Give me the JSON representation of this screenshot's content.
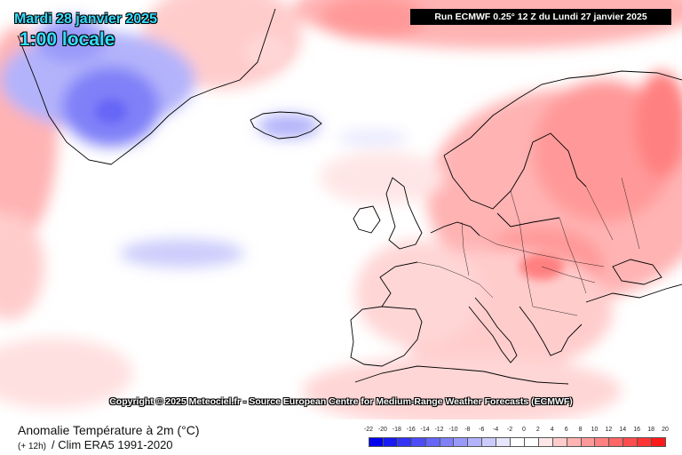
{
  "header": {
    "date": "Mardi 28 janvier 2025",
    "local_time": "1:00 locale",
    "run": "Run ECMWF 0.25° 12 Z du Lundi 27 janvier 2025"
  },
  "map": {
    "copyright": "Copyright © 2025 Meteociel.fr - Source European Centre for Medium-Range Weather Forecasts (ECMWF)",
    "region": "North Atlantic and Europe",
    "field": "2m temperature anomaly",
    "background_color": "#ffffff",
    "coastline_color": "#000000"
  },
  "footer": {
    "title": "Anomalie Température à 2m (°C)",
    "lead": "(+ 12h)",
    "climatology": "/ Clim ERA5 1991-2020"
  },
  "legend": {
    "labels": [
      "-22",
      "-20",
      "-18",
      "-16",
      "-14",
      "-12",
      "-10",
      "-8",
      "-6",
      "-4",
      "-2",
      "0",
      "2",
      "4",
      "6",
      "8",
      "10",
      "12",
      "14",
      "16",
      "18",
      "20"
    ],
    "colors": [
      "#0000ee",
      "#1a1af2",
      "#3333f4",
      "#4d4df6",
      "#6666f7",
      "#8080f8",
      "#9999fa",
      "#b3b3fb",
      "#ccccfc",
      "#e6e6fe",
      "#ffffff",
      "#ffffff",
      "#ffe6e6",
      "#ffcccc",
      "#ffb3b3",
      "#ff9999",
      "#ff8080",
      "#ff6666",
      "#ff4d4d",
      "#ff3333",
      "#ff1a1a"
    ]
  }
}
